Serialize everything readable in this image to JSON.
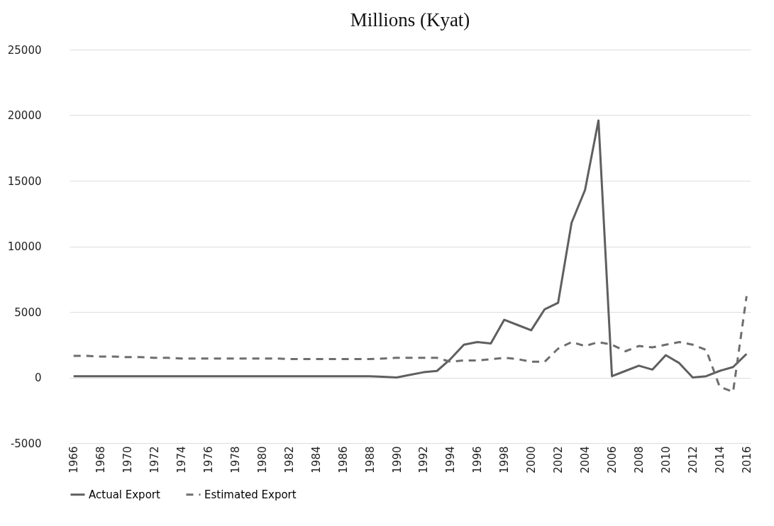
{
  "chart_data": {
    "type": "line",
    "title": "Millions (Kyat)",
    "categories": [
      "1966",
      null,
      "1968",
      null,
      "1970",
      null,
      "1972",
      null,
      "1974",
      null,
      "1976",
      null,
      "1978",
      null,
      "1980",
      null,
      "1982",
      null,
      "1984",
      null,
      "1986",
      null,
      "1988",
      null,
      "1990",
      null,
      "1992",
      null,
      "1994",
      null,
      "1996",
      null,
      "1998",
      null,
      "2000",
      null,
      "2002",
      null,
      "2004",
      null,
      "2006",
      null,
      "2008",
      null,
      "2010",
      null,
      "2012",
      null,
      "2014",
      null,
      "2016"
    ],
    "series": [
      {
        "name": "Actual Export",
        "color": "#5f5f5f",
        "line_style": "solid",
        "values": [
          100,
          100,
          100,
          100,
          100,
          100,
          100,
          100,
          100,
          100,
          100,
          100,
          100,
          100,
          100,
          100,
          100,
          100,
          100,
          100,
          100,
          100,
          100,
          50,
          0,
          200,
          400,
          500,
          1400,
          2500,
          2700,
          2600,
          4400,
          4000,
          3600,
          5200,
          5700,
          11800,
          14300,
          19600,
          100,
          500,
          900,
          600,
          1700,
          1100,
          0,
          100,
          500,
          800,
          1800
        ]
      },
      {
        "name": "Estimated Export",
        "color": "#6e6e6e",
        "line_style": "dashed",
        "values": [
          1650,
          1650,
          1600,
          1600,
          1550,
          1550,
          1500,
          1500,
          1450,
          1450,
          1450,
          1450,
          1450,
          1450,
          1450,
          1450,
          1400,
          1400,
          1400,
          1400,
          1400,
          1400,
          1400,
          1450,
          1500,
          1500,
          1500,
          1500,
          1200,
          1300,
          1300,
          1400,
          1500,
          1400,
          1200,
          1200,
          2200,
          2700,
          2400,
          2700,
          2500,
          2000,
          2400,
          2300,
          2500,
          2700,
          2500,
          2100,
          -700,
          -1100,
          6200
        ]
      }
    ],
    "ylim": [
      -5000,
      25000
    ],
    "yticks": [
      -5000,
      0,
      5000,
      10000,
      15000,
      20000,
      25000
    ],
    "grid": "y",
    "legend": "bottom"
  }
}
